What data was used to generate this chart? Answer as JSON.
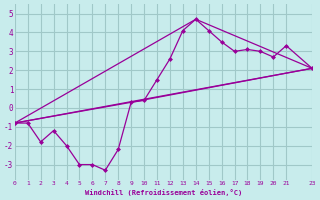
{
  "xlabel": "Windchill (Refroidissement éolien,°C)",
  "bg_color": "#c8ecec",
  "grid_color": "#a0c8c8",
  "line_color": "#990099",
  "xlim": [
    0,
    23
  ],
  "ylim": [
    -3.8,
    5.5
  ],
  "xtick_vals": [
    0,
    1,
    2,
    3,
    4,
    5,
    6,
    7,
    8,
    9,
    10,
    11,
    12,
    13,
    14,
    15,
    16,
    17,
    18,
    19,
    20,
    21,
    23
  ],
  "xtick_labels": [
    "0",
    "1",
    "2",
    "3",
    "4",
    "5",
    "6",
    "7",
    "8",
    "9",
    "10",
    "11",
    "12",
    "13",
    "14",
    "15",
    "16",
    "17",
    "18",
    "19",
    "20",
    "21",
    "23"
  ],
  "yticks": [
    -3,
    -2,
    -1,
    0,
    1,
    2,
    3,
    4,
    5
  ],
  "line1_x": [
    0,
    1,
    2,
    3,
    4,
    5,
    6,
    7,
    8,
    9,
    10,
    11,
    12,
    13,
    14,
    15,
    16,
    17,
    18,
    19,
    20,
    21,
    23
  ],
  "line1_y": [
    -0.8,
    -0.8,
    -1.8,
    -1.2,
    -2.0,
    -3.0,
    -3.0,
    -3.3,
    -2.2,
    0.3,
    0.4,
    1.5,
    2.6,
    4.1,
    4.7,
    4.1,
    3.5,
    3.0,
    3.1,
    3.0,
    2.7,
    3.3,
    2.1
  ],
  "line2_x": [
    0,
    23
  ],
  "line2_y": [
    -0.8,
    2.1
  ],
  "line3_x": [
    0,
    9,
    23
  ],
  "line3_y": [
    -0.8,
    0.3,
    2.1
  ],
  "line4_x": [
    0,
    14,
    23
  ],
  "line4_y": [
    -0.8,
    4.7,
    2.1
  ]
}
